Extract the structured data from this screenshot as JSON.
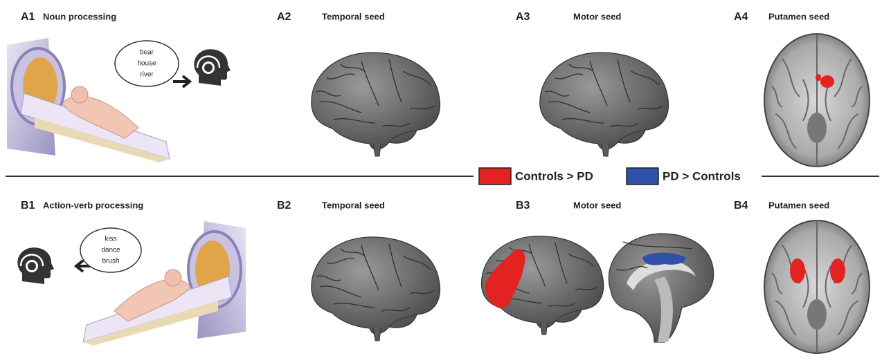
{
  "panels": [
    {
      "id": "A1",
      "title": "Noun processing",
      "words": [
        "bear",
        "house",
        "river"
      ]
    },
    {
      "id": "A2",
      "title": "Temporal seed"
    },
    {
      "id": "A3",
      "title": "Motor seed"
    },
    {
      "id": "A4",
      "title": "Putamen seed"
    },
    {
      "id": "B1",
      "title": "Action-verb processing",
      "words": [
        "kiss",
        "dance",
        "brush"
      ]
    },
    {
      "id": "B2",
      "title": "Temporal seed"
    },
    {
      "id": "B3",
      "title": "Motor seed"
    },
    {
      "id": "B4",
      "title": "Putamen seed"
    }
  ],
  "legend": [
    {
      "label": "Controls > PD",
      "color": "#e32222"
    },
    {
      "label": "PD > Controls",
      "color": "#2f4fa8"
    }
  ]
}
